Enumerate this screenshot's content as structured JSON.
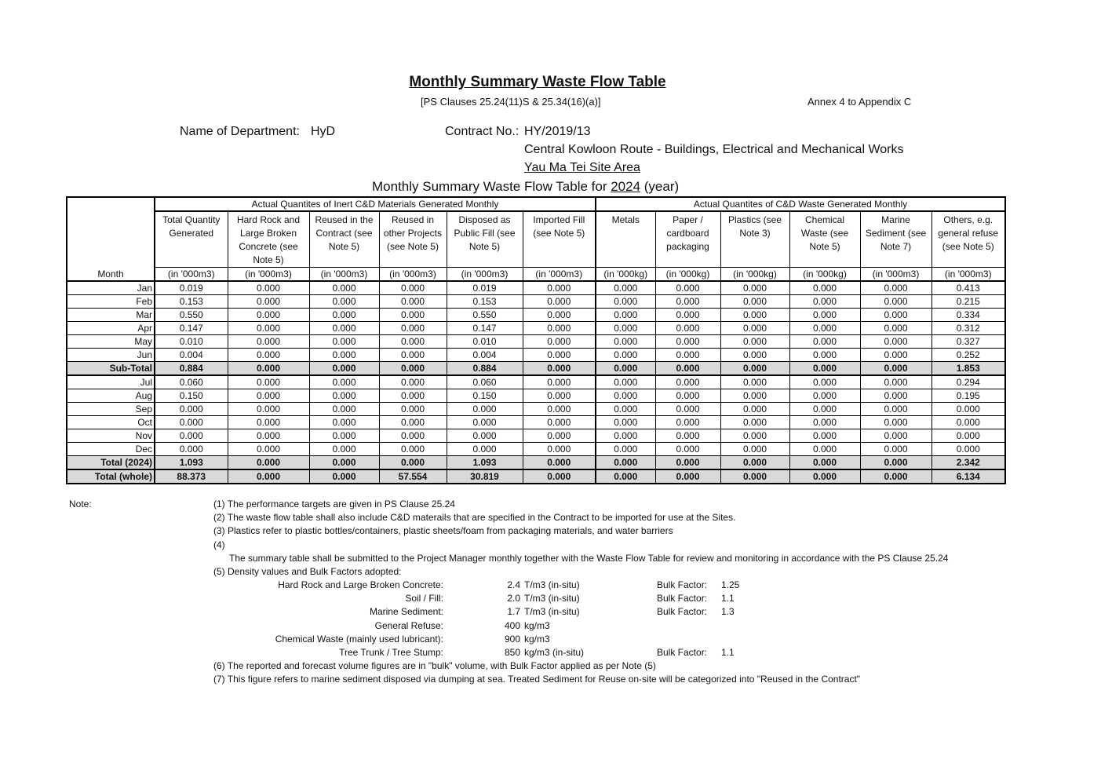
{
  "title": "Monthly Summary Waste Flow Table",
  "clauses": "[PS Clauses 25.24(11)S & 25.34(16)(a)]",
  "annex": "Annex 4 to Appendix C",
  "dept_label": "Name of Department:",
  "dept_value": "HyD",
  "contract_label": "Contract No.:",
  "contract_value": "HY/2019/13",
  "project": "Central Kowloon Route - Buildings, Electrical and Mechanical Works",
  "site": "Yau Ma Tei Site Area",
  "table_title_pre": "Monthly Summary Waste Flow Table for ",
  "table_year": "2024",
  "table_title_post": " (year)",
  "table": {
    "group_inert": "Actual Quantites of Inert C&D Materials Generated Monthly",
    "group_waste": "Actual Quantites of C&D Waste Generated Monthly",
    "month_header": "Month",
    "columns": [
      {
        "label": "Total Quantity Generated",
        "unit": "(in '000m3)"
      },
      {
        "label": "Hard Rock and Large Broken Concrete (see Note 5)",
        "unit": "(in '000m3)"
      },
      {
        "label": "Reused in the Contract (see Note 5)",
        "unit": "(in '000m3)"
      },
      {
        "label": "Reused in other Projects (see Note 5)",
        "unit": "(in '000m3)"
      },
      {
        "label": "Disposed as Public Fill (see Note 5)",
        "unit": "(in '000m3)"
      },
      {
        "label": "Imported Fill (see Note 5)",
        "unit": "(in '000m3)"
      },
      {
        "label": "Metals",
        "unit": "(in '000kg)"
      },
      {
        "label": "Paper / cardboard packaging",
        "unit": "(in '000kg)"
      },
      {
        "label": "Plastics (see Note 3)",
        "unit": "(in '000kg)"
      },
      {
        "label": "Chemical Waste (see Note 5)",
        "unit": "(in '000kg)"
      },
      {
        "label": "Marine Sediment (see Note 7)",
        "unit": "(in '000m3)"
      },
      {
        "label": "Others, e.g. general refuse (see Note 5)",
        "unit": "(in '000m3)"
      }
    ],
    "rows": [
      {
        "month": "Jan",
        "values": [
          "0.019",
          "0.000",
          "0.000",
          "0.000",
          "0.019",
          "0.000",
          "0.000",
          "0.000",
          "0.000",
          "0.000",
          "0.000",
          "0.413"
        ]
      },
      {
        "month": "Feb",
        "values": [
          "0.153",
          "0.000",
          "0.000",
          "0.000",
          "0.153",
          "0.000",
          "0.000",
          "0.000",
          "0.000",
          "0.000",
          "0.000",
          "0.215"
        ]
      },
      {
        "month": "Mar",
        "values": [
          "0.550",
          "0.000",
          "0.000",
          "0.000",
          "0.550",
          "0.000",
          "0.000",
          "0.000",
          "0.000",
          "0.000",
          "0.000",
          "0.334"
        ]
      },
      {
        "month": "Apr",
        "values": [
          "0.147",
          "0.000",
          "0.000",
          "0.000",
          "0.147",
          "0.000",
          "0.000",
          "0.000",
          "0.000",
          "0.000",
          "0.000",
          "0.312"
        ]
      },
      {
        "month": "May",
        "values": [
          "0.010",
          "0.000",
          "0.000",
          "0.000",
          "0.010",
          "0.000",
          "0.000",
          "0.000",
          "0.000",
          "0.000",
          "0.000",
          "0.327"
        ]
      },
      {
        "month": "Jun",
        "values": [
          "0.004",
          "0.000",
          "0.000",
          "0.000",
          "0.004",
          "0.000",
          "0.000",
          "0.000",
          "0.000",
          "0.000",
          "0.000",
          "0.252"
        ]
      },
      {
        "month": "Sub-Total",
        "total": true,
        "values": [
          "0.884",
          "0.000",
          "0.000",
          "0.000",
          "0.884",
          "0.000",
          "0.000",
          "0.000",
          "0.000",
          "0.000",
          "0.000",
          "1.853"
        ]
      },
      {
        "month": "Jul",
        "values": [
          "0.060",
          "0.000",
          "0.000",
          "0.000",
          "0.060",
          "0.000",
          "0.000",
          "0.000",
          "0.000",
          "0.000",
          "0.000",
          "0.294"
        ]
      },
      {
        "month": "Aug",
        "values": [
          "0.150",
          "0.000",
          "0.000",
          "0.000",
          "0.150",
          "0.000",
          "0.000",
          "0.000",
          "0.000",
          "0.000",
          "0.000",
          "0.195"
        ]
      },
      {
        "month": "Sep",
        "values": [
          "0.000",
          "0.000",
          "0.000",
          "0.000",
          "0.000",
          "0.000",
          "0.000",
          "0.000",
          "0.000",
          "0.000",
          "0.000",
          "0.000"
        ]
      },
      {
        "month": "Oct",
        "values": [
          "0.000",
          "0.000",
          "0.000",
          "0.000",
          "0.000",
          "0.000",
          "0.000",
          "0.000",
          "0.000",
          "0.000",
          "0.000",
          "0.000"
        ]
      },
      {
        "month": "Nov",
        "values": [
          "0.000",
          "0.000",
          "0.000",
          "0.000",
          "0.000",
          "0.000",
          "0.000",
          "0.000",
          "0.000",
          "0.000",
          "0.000",
          "0.000"
        ]
      },
      {
        "month": "Dec",
        "values": [
          "0.000",
          "0.000",
          "0.000",
          "0.000",
          "0.000",
          "0.000",
          "0.000",
          "0.000",
          "0.000",
          "0.000",
          "0.000",
          "0.000"
        ]
      },
      {
        "month": "Total (2024)",
        "total": true,
        "values": [
          "1.093",
          "0.000",
          "0.000",
          "0.000",
          "1.093",
          "0.000",
          "0.000",
          "0.000",
          "0.000",
          "0.000",
          "0.000",
          "2.342"
        ]
      },
      {
        "month": "Total (whole)",
        "total": true,
        "values": [
          "88.373",
          "0.000",
          "0.000",
          "57.554",
          "30.819",
          "0.000",
          "0.000",
          "0.000",
          "0.000",
          "0.000",
          "0.000",
          "6.134"
        ]
      }
    ]
  },
  "notes": {
    "label": "Note:",
    "n1": "(1)  The performance targets are given in PS Clause 25.24",
    "n2": "(2)  The waste flow table shall also include C&D materails that are specified in the Contract to be imported for use at the Sites.",
    "n3": "(3)  Plastics refer to plastic bottles/containers, plastic sheets/foam from packaging materials, and water barriers",
    "n4": "(4)",
    "n4text": "The summary table shall be submitted to the Project Manager monthly together with the Waste Flow Table for review and monitoring in accordance with the PS Clause 25.24",
    "n5": "(5)  Density values and Bulk Factors adopted:",
    "density": [
      {
        "material": "Hard Rock and Large Broken Concrete:",
        "value": "2.4",
        "unit": "T/m3 (in-situ)",
        "bf_label": "Bulk Factor:",
        "bf": "1.25"
      },
      {
        "material": "Soil / Fill:",
        "value": "2.0",
        "unit": "T/m3 (in-situ)",
        "bf_label": "Bulk Factor:",
        "bf": "1.1"
      },
      {
        "material": "Marine Sediment:",
        "value": "1.7",
        "unit": "T/m3 (in-situ)",
        "bf_label": "Bulk Factor:",
        "bf": "1.3"
      },
      {
        "material": "General Refuse:",
        "value": "400",
        "unit": "kg/m3"
      },
      {
        "material": "Chemical Waste (mainly used lubricant):",
        "value": "900",
        "unit": "kg/m3"
      },
      {
        "material": "Tree Trunk / Tree Stump:",
        "value": "850",
        "unit": "kg/m3 (in-situ)",
        "bf_label": "Bulk Factor:",
        "bf": "1.1"
      }
    ],
    "n6": "(6)  The reported and forecast volume figures are in \"bulk\" volume, with Bulk Factor applied as per Note (5)",
    "n7": "(7)  This figure refers to marine sediment disposed via dumping at sea. Treated Sediment for Reuse on-site will be categorized into \"Reused in the Contract\""
  }
}
